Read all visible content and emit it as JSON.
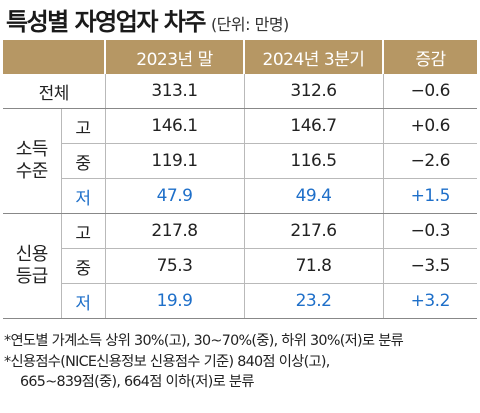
{
  "title": "특성별 자영업자 차주",
  "unit": "(단위: 만명)",
  "table": {
    "headers": [
      "",
      "2023년 말",
      "2024년 3분기",
      "증감"
    ],
    "total": {
      "label": "전체",
      "values": [
        "313.1",
        "312.6",
        "−0.6"
      ]
    },
    "groups": [
      {
        "label_lines": [
          "소득",
          "수준"
        ],
        "rows": [
          {
            "level": "고",
            "values": [
              "146.1",
              "146.7",
              "+0.6"
            ]
          },
          {
            "level": "중",
            "values": [
              "119.1",
              "116.5",
              "−2.6"
            ]
          },
          {
            "level": "저",
            "values": [
              "47.9",
              "49.4",
              "+1.5"
            ]
          }
        ]
      },
      {
        "label_lines": [
          "신용",
          "등급"
        ],
        "rows": [
          {
            "level": "고",
            "values": [
              "217.8",
              "217.6",
              "−0.3"
            ]
          },
          {
            "level": "중",
            "values": [
              "75.3",
              "71.8",
              "−3.5"
            ]
          },
          {
            "level": "저",
            "values": [
              "19.9",
              "23.2",
              "+3.2"
            ]
          }
        ]
      }
    ]
  },
  "notes": [
    "*연도별 가계소득 상위 30%(고), 30~70%(중), 하위 30%(저)로 분류",
    "*신용점수(NICE신용정보 신용점수 기준) 840점 이상(고),",
    "665~839점(중), 664점 이하(저)로 분류"
  ],
  "colors": {
    "header_bg": "#b69764",
    "highlight": "#1e6fc9"
  }
}
